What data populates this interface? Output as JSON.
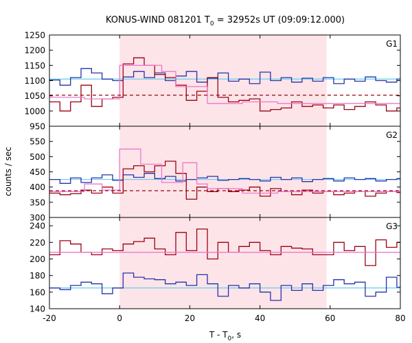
{
  "chart_data": {
    "type": "line",
    "title": "KONUS-WIND 081201 T",
    "title_sub": "0",
    "title_rest": " = 32952s UT (09:09:12.000)",
    "xlabel": "T - T",
    "xlabel_sub": "0",
    "xlabel_rest": ", s",
    "ylabel": "counts / sec",
    "xlim": [
      -20,
      80
    ],
    "x_ticks": [
      "-20",
      "0",
      "20",
      "40",
      "60",
      "80"
    ],
    "highlight_interval": [
      0,
      59
    ],
    "colors": {
      "blue_series": "#2233aa",
      "dark_red_series": "#990011",
      "pink_series": "#ee77cc",
      "cyan_line": "#66ccee",
      "background_line": "#990011",
      "highlight": "#fde4e8"
    },
    "panels": [
      {
        "label": "G1",
        "ylim": [
          950,
          1250
        ],
        "y_ticks": [
          "950",
          "1000",
          "1050",
          "1100",
          "1150",
          "1200",
          "1250"
        ],
        "series": [
          {
            "color": "blue",
            "x": [
              -20,
              -17,
              -14,
              -11,
              -8,
              -5,
              -2,
              1,
              4,
              7,
              10,
              13,
              16,
              19,
              22,
              25,
              28,
              31,
              34,
              37,
              40,
              43,
              46,
              49,
              52,
              55,
              58,
              61,
              64,
              67,
              70,
              73,
              76,
              79
            ],
            "y": [
              1102,
              1085,
              1110,
              1140,
              1125,
              1105,
              1100,
              1112,
              1130,
              1110,
              1125,
              1100,
              1115,
              1130,
              1095,
              1108,
              1125,
              1098,
              1105,
              1090,
              1128,
              1100,
              1110,
              1095,
              1108,
              1098,
              1110,
              1090,
              1105,
              1098,
              1112,
              1100,
              1095,
              1105
            ]
          },
          {
            "color": "dark_red",
            "x": [
              -20,
              -17,
              -14,
              -11,
              -8,
              -5,
              -2,
              1,
              4,
              7,
              10,
              13,
              16,
              19,
              22,
              25,
              28,
              31,
              34,
              37,
              40,
              43,
              46,
              49,
              52,
              55,
              58,
              61,
              64,
              67,
              70,
              73,
              76,
              79
            ],
            "y": [
              1030,
              1000,
              1030,
              1085,
              1015,
              1040,
              1045,
              1155,
              1175,
              1150,
              1120,
              1110,
              1085,
              1035,
              1065,
              1110,
              1045,
              1030,
              1035,
              1040,
              1000,
              1005,
              1010,
              1030,
              1015,
              1020,
              1010,
              1020,
              1005,
              1015,
              1030,
              1020,
              1000,
              1010
            ]
          },
          {
            "color": "pink",
            "x": [
              -20,
              -10,
              0,
              12,
              16,
              25,
              35,
              45,
              55,
              70
            ],
            "y": [
              1045,
              1040,
              1150,
              1130,
              1080,
              1025,
              1030,
              1025,
              1025,
              1025
            ]
          }
        ],
        "cyan_level": 1105,
        "background_level": 1052
      },
      {
        "label": "G2",
        "ylim": [
          300,
          600
        ],
        "y_ticks": [
          "300",
          "350",
          "400",
          "450",
          "500",
          "550"
        ],
        "series": [
          {
            "color": "blue",
            "x": [
              -20,
              -17,
              -14,
              -11,
              -8,
              -5,
              -2,
              1,
              4,
              7,
              10,
              13,
              16,
              19,
              22,
              25,
              28,
              31,
              34,
              37,
              40,
              43,
              46,
              49,
              52,
              55,
              58,
              61,
              64,
              67,
              70,
              73,
              76,
              79
            ],
            "y": [
              425,
              412,
              430,
              415,
              430,
              440,
              422,
              440,
              432,
              445,
              428,
              435,
              420,
              425,
              430,
              435,
              422,
              425,
              428,
              425,
              420,
              432,
              425,
              430,
              418,
              425,
              428,
              420,
              430,
              425,
              428,
              420,
              425,
              428
            ]
          },
          {
            "color": "dark_red",
            "x": [
              -20,
              -17,
              -14,
              -11,
              -8,
              -5,
              -2,
              1,
              4,
              7,
              10,
              13,
              16,
              19,
              22,
              25,
              28,
              31,
              34,
              37,
              40,
              43,
              46,
              49,
              52,
              55,
              58,
              61,
              64,
              67,
              70,
              73,
              76,
              79
            ],
            "y": [
              380,
              375,
              378,
              390,
              380,
              400,
              380,
              460,
              470,
              450,
              470,
              485,
              445,
              360,
              400,
              385,
              395,
              385,
              390,
              400,
              370,
              395,
              385,
              375,
              390,
              380,
              385,
              375,
              380,
              385,
              370,
              380,
              385,
              382
            ]
          },
          {
            "color": "pink",
            "x": [
              -20,
              -10,
              -5,
              0,
              6,
              12,
              18,
              22,
              25,
              35,
              45,
              55,
              70
            ],
            "y": [
              385,
              410,
              390,
              525,
              475,
              415,
              480,
              410,
              395,
              380,
              385,
              385,
              385
            ]
          }
        ],
        "cyan_level": 425,
        "background_level": 388
      },
      {
        "label": "G3",
        "ylim": [
          140,
          250
        ],
        "y_ticks": [
          "140",
          "160",
          "180",
          "200",
          "220",
          "240"
        ],
        "series": [
          {
            "color": "blue",
            "x": [
              -20,
              -17,
              -14,
              -11,
              -8,
              -5,
              -2,
              1,
              4,
              7,
              10,
              13,
              16,
              19,
              22,
              25,
              28,
              31,
              34,
              37,
              40,
              43,
              46,
              49,
              52,
              55,
              58,
              61,
              64,
              67,
              70,
              73,
              76,
              79
            ],
            "y": [
              165,
              163,
              168,
              172,
              170,
              158,
              165,
              183,
              178,
              176,
              175,
              170,
              172,
              168,
              181,
              170,
              155,
              168,
              165,
              170,
              160,
              150,
              168,
              162,
              170,
              162,
              168,
              175,
              170,
              172,
              155,
              160,
              178,
              166
            ]
          },
          {
            "color": "dark_red",
            "x": [
              -20,
              -17,
              -14,
              -11,
              -8,
              -5,
              -2,
              1,
              4,
              7,
              10,
              13,
              16,
              19,
              22,
              25,
              28,
              31,
              34,
              37,
              40,
              43,
              46,
              49,
              52,
              55,
              58,
              61,
              64,
              67,
              70,
              73,
              76,
              79
            ],
            "y": [
              205,
              222,
              218,
              208,
              205,
              212,
              210,
              218,
              221,
              225,
              212,
              205,
              232,
              210,
              236,
              200,
              220,
              208,
              215,
              220,
              210,
              205,
              215,
              213,
              212,
              205,
              205,
              220,
              210,
              215,
              192,
              223,
              214,
              220
            ]
          },
          {
            "color": "pink",
            "x": [
              -20,
              -10,
              0,
              70
            ],
            "y": [
              208,
              208,
              208,
              208
            ]
          }
        ],
        "cyan_level": 165,
        "background_level": null
      }
    ]
  }
}
